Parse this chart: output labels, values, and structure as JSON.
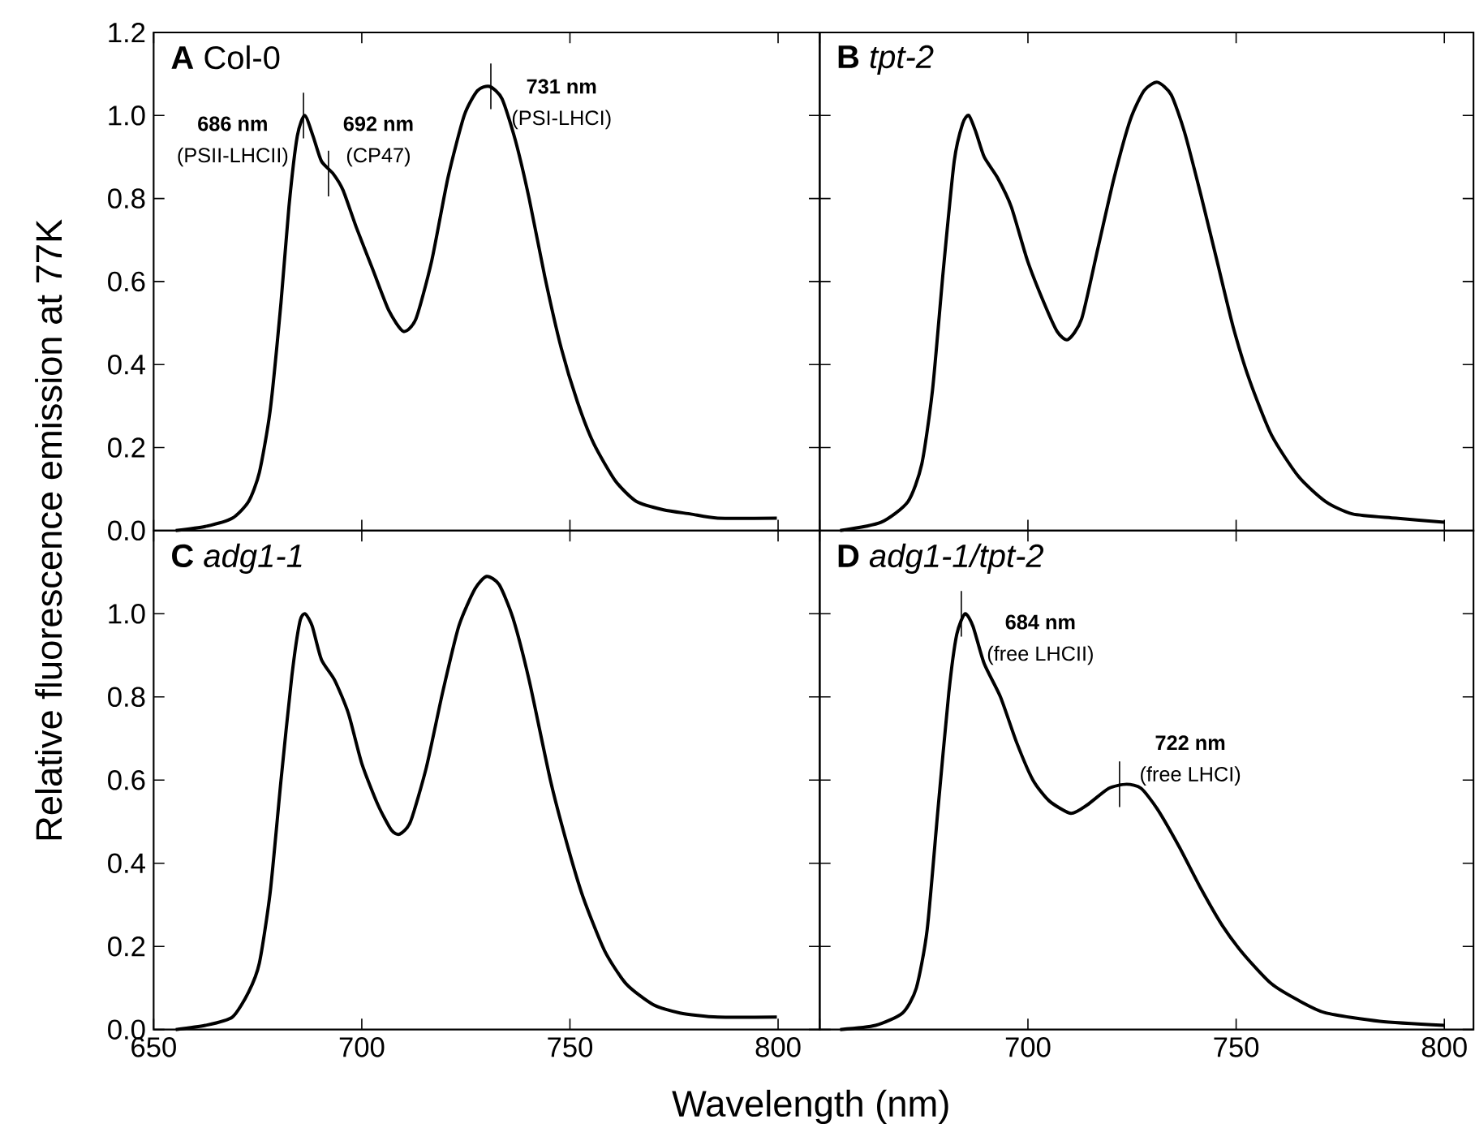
{
  "chart_data": [
    {
      "type": "line",
      "title": "**A**  Col-0",
      "color": "#000000",
      "xlim": [
        650,
        810
      ],
      "ylim": [
        0,
        1.2
      ],
      "xticks": [
        650,
        700,
        750,
        800
      ],
      "yticks": [
        {
          "value": 0,
          "label": "0.0"
        },
        0.2,
        0.4,
        0.6,
        0.8,
        {
          "value": 1,
          "label": "1.0"
        },
        1.2
      ],
      "tick_labels": "y",
      "x": [
        655.3,
        662.4,
        668.9,
        672.8,
        675.4,
        678,
        680.6,
        682.5,
        684.5,
        686.3,
        688.3,
        690.3,
        693.1,
        695.5,
        698.7,
        702.6,
        706.5,
        710,
        713,
        716.8,
        720.7,
        724.6,
        727.8,
        730.7,
        733.7,
        736.9,
        740.2,
        744,
        747.9,
        751.8,
        755.7,
        760.9,
        766,
        772.5,
        779,
        785.5,
        799.7
      ],
      "values": [
        0.0,
        0.01,
        0.03,
        0.07,
        0.14,
        0.29,
        0.55,
        0.78,
        0.95,
        1.0,
        0.95,
        0.89,
        0.86,
        0.82,
        0.73,
        0.63,
        0.53,
        0.48,
        0.51,
        0.65,
        0.85,
        1.0,
        1.06,
        1.07,
        1.04,
        0.94,
        0.8,
        0.61,
        0.44,
        0.31,
        0.21,
        0.12,
        0.07,
        0.05,
        0.04,
        0.03,
        0.03
      ],
      "annotations": [
        {
          "text": "686 nm",
          "x": 686,
          "y": 1.0
        },
        {
          "text": "(PSII-LHCII)",
          "x": 686,
          "y": 1.0
        },
        {
          "text": "692 nm",
          "x": 692,
          "y": 0.86
        },
        {
          "text": "(CP47)",
          "x": 692,
          "y": 0.86
        },
        {
          "text": "731 nm",
          "x": 731,
          "y": 1.07
        },
        {
          "text": "(PSI-LHCI)",
          "x": 731,
          "y": 1.07
        }
      ]
    },
    {
      "type": "line",
      "title": "**B**  *tpt-2*",
      "color": "#000000",
      "xlim": [
        650,
        807
      ],
      "ylim": [
        0,
        1.2
      ],
      "xticks": [
        650,
        700,
        750,
        800
      ],
      "yticks": [
        0,
        0.2,
        0.4,
        0.6,
        0.8,
        1,
        1.2
      ],
      "tick_labels": false,
      "x": [
        654.9,
        664.7,
        671.2,
        674.5,
        677.1,
        679.7,
        682.3,
        684.3,
        685.8,
        687.5,
        689.5,
        692.7,
        696,
        699.9,
        703.8,
        707,
        709.6,
        712.9,
        716.8,
        720.7,
        724.6,
        727.9,
        731.1,
        734.4,
        737.6,
        741.5,
        745.4,
        749.3,
        753.3,
        758.5,
        765,
        771.5,
        778,
        788.4,
        800
      ],
      "values": [
        0.0,
        0.02,
        0.07,
        0.16,
        0.34,
        0.63,
        0.89,
        0.98,
        1.0,
        0.96,
        0.9,
        0.85,
        0.78,
        0.65,
        0.55,
        0.48,
        0.46,
        0.51,
        0.68,
        0.85,
        0.99,
        1.06,
        1.08,
        1.05,
        0.96,
        0.81,
        0.65,
        0.49,
        0.36,
        0.23,
        0.13,
        0.07,
        0.04,
        0.03,
        0.02
      ]
    },
    {
      "type": "line",
      "title": "**C**  *adg1-1*",
      "color": "#000000",
      "xlim": [
        650,
        810
      ],
      "ylim": [
        0,
        1.2
      ],
      "xticks": [
        650,
        700,
        750,
        800
      ],
      "yticks": [
        {
          "value": 0,
          "label": "0.0"
        },
        0.2,
        0.4,
        0.6,
        0.8,
        {
          "value": 1,
          "label": "1.0"
        },
        {
          "value": 1.2,
          "label": null
        }
      ],
      "xlabel": "Wavelength (nm)",
      "ylabel": "Relative fluorescence emission at 77K",
      "x": [
        655.3,
        662.4,
        668.9,
        672.8,
        675.4,
        678,
        680.6,
        683.2,
        685.1,
        686.4,
        688.1,
        690.3,
        693.5,
        696.8,
        700,
        703.9,
        707.1,
        709.1,
        711.7,
        715.5,
        719.4,
        723.3,
        727.2,
        730,
        733,
        736.3,
        740.2,
        745.3,
        749.2,
        753.1,
        758.3,
        763.5,
        770,
        776.4,
        785.5,
        799.7
      ],
      "values": [
        0.0,
        0.01,
        0.03,
        0.09,
        0.16,
        0.33,
        0.6,
        0.85,
        0.98,
        1.0,
        0.97,
        0.89,
        0.84,
        0.76,
        0.64,
        0.54,
        0.48,
        0.47,
        0.5,
        0.63,
        0.81,
        0.97,
        1.06,
        1.09,
        1.07,
        0.99,
        0.84,
        0.6,
        0.45,
        0.32,
        0.19,
        0.11,
        0.06,
        0.04,
        0.03,
        0.03
      ]
    },
    {
      "type": "line",
      "title": "**D**  *adg1-1/tpt-2*",
      "color": "#000000",
      "xlim": [
        650,
        807
      ],
      "ylim": [
        0,
        1.2
      ],
      "xticks": [
        {
          "value": 650,
          "label": null
        },
        700,
        750,
        800
      ],
      "yticks": [
        0,
        0.2,
        0.4,
        0.6,
        0.8,
        1,
        1.2
      ],
      "tick_labels": "x",
      "x": [
        654.9,
        663.4,
        669.9,
        673.2,
        675.8,
        678.4,
        681,
        682.9,
        684.9,
        686.8,
        689.5,
        693.4,
        697.3,
        701.2,
        705.1,
        710.3,
        714.2,
        719.4,
        723.7,
        727.2,
        731.1,
        736.3,
        741.5,
        746.7,
        751.9,
        758.5,
        765,
        771.5,
        784.5,
        800
      ],
      "values": [
        0.0,
        0.01,
        0.04,
        0.1,
        0.24,
        0.53,
        0.81,
        0.95,
        1.0,
        0.97,
        0.88,
        0.8,
        0.69,
        0.6,
        0.55,
        0.52,
        0.54,
        0.58,
        0.59,
        0.58,
        0.53,
        0.44,
        0.34,
        0.25,
        0.18,
        0.11,
        0.07,
        0.04,
        0.02,
        0.01
      ],
      "annotations": [
        {
          "text": "684 nm",
          "x": 684,
          "y": 1.0
        },
        {
          "text": "(free LHCII)",
          "x": 684,
          "y": 1.0
        },
        {
          "text": "722 nm",
          "x": 722,
          "y": 0.59
        },
        {
          "text": "(free LHCI)",
          "x": 722,
          "y": 0.59
        }
      ]
    }
  ]
}
